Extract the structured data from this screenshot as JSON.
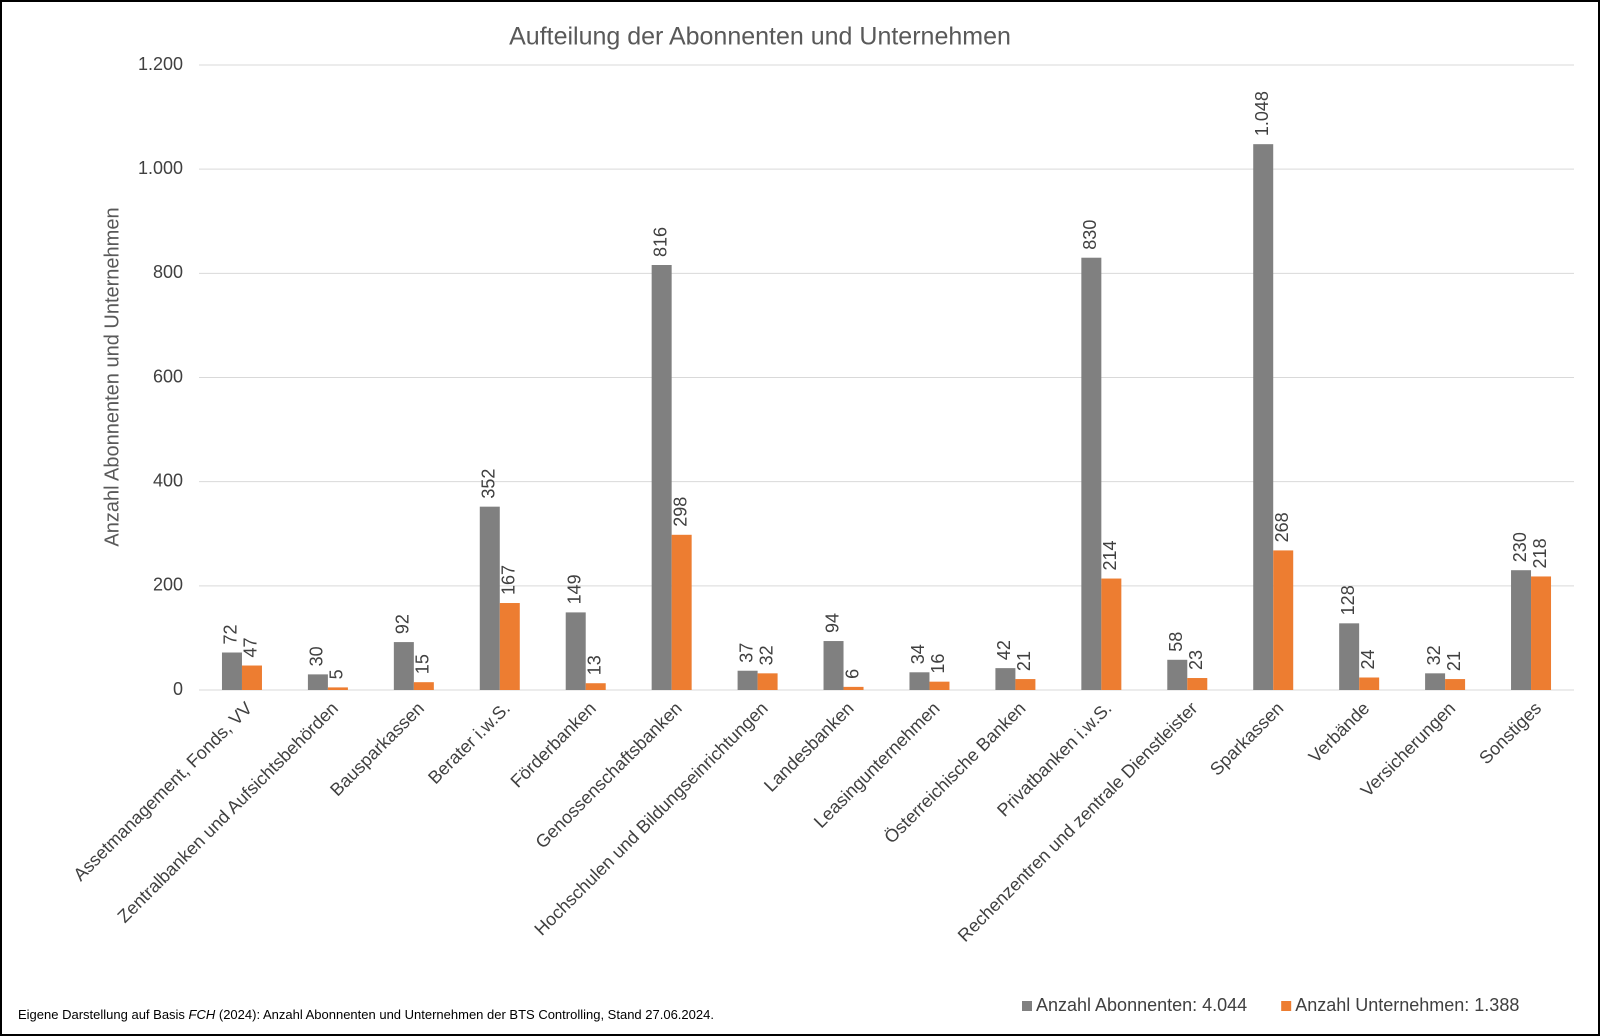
{
  "chart_data": {
    "type": "bar",
    "title": "Aufteilung der Abonnenten und Unternehmen",
    "y_label": "Anzahl Abonnenten und Unternehmen",
    "categories": [
      "Assetmanagement, Fonds, VV",
      "Zentralbanken und Aufsichtsbehörden",
      "Bausparkassen",
      "Berater i.w.S.",
      "Förderbanken",
      "Genossenschaftsbanken",
      "Hochschulen und Bildungseinrichtungen",
      "Landesbanken",
      "Leasingunternehmen",
      "Österreichische Banken",
      "Privatbanken i.w.S.",
      "Rechenzentren und zentrale Dienstleister",
      "Sparkassen",
      "Verbände",
      "Versicherungen",
      "Sonstiges"
    ],
    "series": [
      {
        "name": "Anzahl Abonnenten: 4.044",
        "color": "#808080",
        "values": [
          72,
          30,
          92,
          352,
          149,
          816,
          37,
          94,
          34,
          42,
          830,
          58,
          1048,
          128,
          32,
          230
        ],
        "value_labels": [
          "72",
          "30",
          "92",
          "352",
          "149",
          "816",
          "37",
          "94",
          "34",
          "42",
          "830",
          "58",
          "1.048",
          "128",
          "32",
          "230"
        ]
      },
      {
        "name": "Anzahl Unternehmen: 1.388",
        "color": "#ed7d31",
        "values": [
          47,
          5,
          15,
          167,
          13,
          298,
          32,
          6,
          16,
          21,
          214,
          23,
          268,
          24,
          21,
          218
        ]
      }
    ],
    "ylim": [
      0,
      1200
    ],
    "yticks": [
      0,
      200,
      400,
      600,
      800,
      {
        "value": 1000,
        "label": "1.000"
      },
      {
        "value": 1200,
        "label": "1.200"
      }
    ],
    "grid": true,
    "legend": "bottom-right",
    "source": {
      "prefix": "Eigene Darstellung auf Basis ",
      "italic": "FCH",
      "suffix": " (2024): Anzahl Abonnenten und Unternehmen der BTS Controlling, Stand 27.06.2024."
    }
  }
}
